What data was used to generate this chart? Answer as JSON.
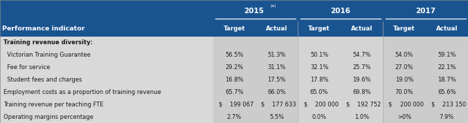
{
  "header_bg": "#1a5490",
  "header_text_color": "#ffffff",
  "row_bg": "#d9d9d9",
  "col_stripe_dark": "#c8c8c8",
  "col_stripe_light": "#d9d9d9",
  "cell_text_color": "#1a1a1a",
  "col_headers": [
    "Target",
    "Actual",
    "Target",
    "Actual",
    "Target",
    "Actual"
  ],
  "year_labels": [
    "2015",
    "2016",
    "2017"
  ],
  "year_superscript": "(a)",
  "rows": [
    {
      "label": "Training revenue diversity:",
      "indent": 0,
      "values": [
        "",
        "",
        "",
        "",
        "",
        ""
      ],
      "section": true
    },
    {
      "label": "  Victorian Training Guarantee",
      "indent": 0,
      "values": [
        "56.5%",
        "51.3%",
        "50.1%",
        "54.7%",
        "54.0%",
        "59.1%"
      ],
      "section": false
    },
    {
      "label": "  Fee for service",
      "indent": 0,
      "values": [
        "29.2%",
        "31.1%",
        "32.1%",
        "25.7%",
        "27.0%",
        "22.1%"
      ],
      "section": false
    },
    {
      "label": "  Student fees and charges",
      "indent": 0,
      "values": [
        "16.8%",
        "17.5%",
        "17.8%",
        "19.6%",
        "19.0%",
        "18.7%"
      ],
      "section": false
    },
    {
      "label": "Employment costs as a proportion of training revenue",
      "indent": 0,
      "values": [
        "65.7%",
        "66.0%",
        "65.0%",
        "69.8%",
        "70.0%",
        "65.6%"
      ],
      "section": false
    },
    {
      "label": "Training revenue per teaching FTE",
      "indent": 0,
      "values": [
        "199 067",
        "177 633",
        "200 000",
        "192 752",
        "200 000",
        "213 150"
      ],
      "section": false,
      "dollar": true
    },
    {
      "label": "Operating margins percentage",
      "indent": 0,
      "values": [
        "2.7%",
        "5.5%",
        "0.0%",
        "1.0%",
        ">0%",
        "7.9%"
      ],
      "section": false
    }
  ],
  "fig_width": 6.76,
  "fig_height": 1.78,
  "dpi": 100
}
